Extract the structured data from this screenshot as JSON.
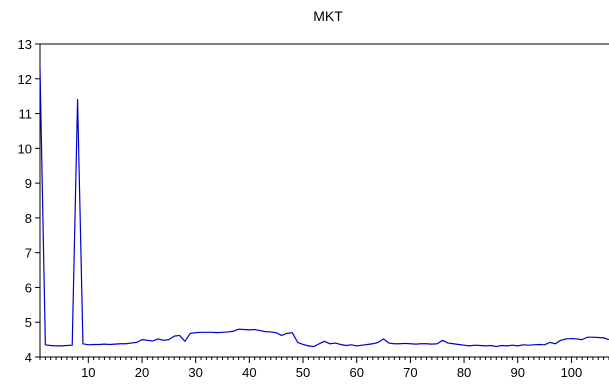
{
  "chart_data": {
    "type": "line",
    "title": "MKT",
    "xlabel": "",
    "ylabel": "",
    "xlim": [
      1,
      107
    ],
    "ylim": [
      4,
      13
    ],
    "x_ticks": [
      10,
      20,
      30,
      40,
      50,
      60,
      70,
      80,
      90,
      100
    ],
    "y_ticks": [
      4,
      5,
      6,
      7,
      8,
      9,
      10,
      11,
      12,
      13
    ],
    "grid": false,
    "legend": "none",
    "series": [
      {
        "color": "#0000cc",
        "x": [
          1,
          2,
          3,
          4,
          5,
          6,
          7,
          8,
          9,
          10,
          11,
          12,
          13,
          14,
          15,
          16,
          17,
          18,
          19,
          20,
          21,
          22,
          23,
          24,
          25,
          26,
          27,
          28,
          29,
          30,
          31,
          32,
          33,
          34,
          35,
          36,
          37,
          38,
          39,
          40,
          41,
          42,
          43,
          44,
          45,
          46,
          47,
          48,
          49,
          50,
          51,
          52,
          53,
          54,
          55,
          56,
          57,
          58,
          59,
          60,
          61,
          62,
          63,
          64,
          65,
          66,
          67,
          68,
          69,
          70,
          71,
          72,
          73,
          74,
          75,
          76,
          77,
          78,
          79,
          80,
          81,
          82,
          83,
          84,
          85,
          86,
          87,
          88,
          89,
          90,
          91,
          92,
          93,
          94,
          95,
          96,
          97,
          98,
          99,
          100,
          101,
          102,
          103,
          104,
          105,
          106,
          107
        ],
        "values": [
          12.3,
          4.35,
          4.33,
          4.32,
          4.32,
          4.33,
          4.34,
          11.4,
          4.38,
          4.35,
          4.36,
          4.36,
          4.37,
          4.36,
          4.37,
          4.38,
          4.38,
          4.4,
          4.42,
          4.5,
          4.48,
          4.46,
          4.52,
          4.48,
          4.5,
          4.6,
          4.62,
          4.45,
          4.68,
          4.7,
          4.71,
          4.71,
          4.71,
          4.7,
          4.71,
          4.72,
          4.74,
          4.8,
          4.79,
          4.78,
          4.79,
          4.76,
          4.73,
          4.72,
          4.7,
          4.62,
          4.68,
          4.7,
          4.42,
          4.36,
          4.32,
          4.3,
          4.38,
          4.45,
          4.38,
          4.4,
          4.36,
          4.33,
          4.35,
          4.32,
          4.34,
          4.36,
          4.38,
          4.42,
          4.52,
          4.4,
          4.38,
          4.38,
          4.39,
          4.38,
          4.37,
          4.38,
          4.38,
          4.37,
          4.38,
          4.48,
          4.4,
          4.38,
          4.36,
          4.34,
          4.32,
          4.34,
          4.33,
          4.32,
          4.33,
          4.3,
          4.33,
          4.32,
          4.34,
          4.32,
          4.35,
          4.34,
          4.35,
          4.36,
          4.35,
          4.42,
          4.38,
          4.48,
          4.52,
          4.53,
          4.52,
          4.5,
          4.57,
          4.57,
          4.56,
          4.55,
          4.5
        ]
      }
    ]
  }
}
